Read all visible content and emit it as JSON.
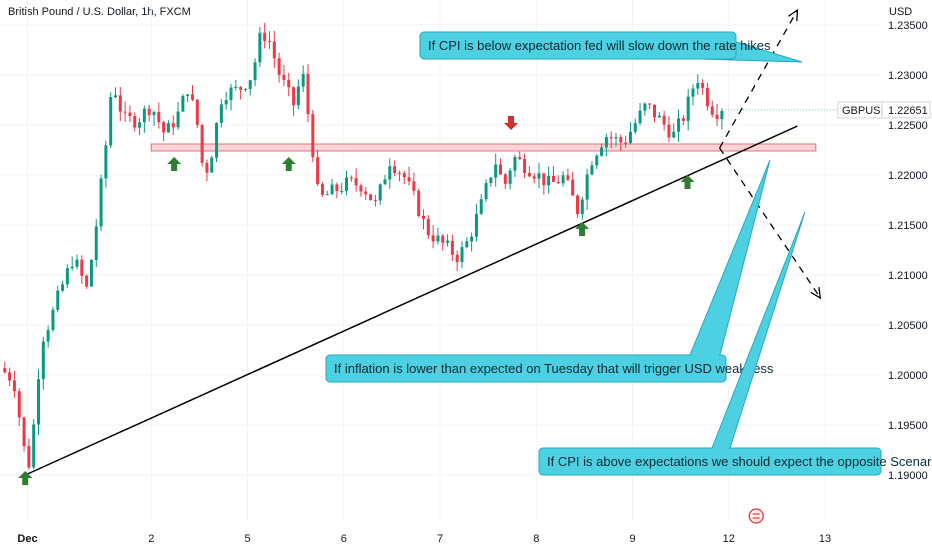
{
  "chart_data": {
    "type": "candlestick",
    "title": "British Pound / U.S. Dollar, 1h, FXCM",
    "symbol": "GBPUSD",
    "last_price": "1.22651",
    "currency_label": "USD",
    "y_ticks": [
      "1.23500",
      "1.23000",
      "1.22500",
      "1.22000",
      "1.21500",
      "1.21000",
      "1.20500",
      "1.20000",
      "1.19500",
      "1.19000"
    ],
    "y_tick_values": [
      1.235,
      1.23,
      1.225,
      1.22,
      1.215,
      1.21,
      1.205,
      1.2,
      1.195,
      1.19
    ],
    "ylim": [
      1.1855,
      1.2375
    ],
    "x_ticks": [
      "Dec",
      "2",
      "5",
      "6",
      "7",
      "8",
      "9",
      "12",
      "13"
    ],
    "x_tick_positions": [
      0.6,
      3.3,
      5.4,
      7.5,
      9.6,
      11.7,
      13.8,
      15.9,
      18.0
    ],
    "xlim": [
      0,
      19.2
    ],
    "event_icon_x": 16.5,
    "callouts": [
      {
        "text": "If CPI is below expectation fed will slow down the rate hikes"
      },
      {
        "text": "If inflation is lower than expected on Tuesday that will trigger USD weakness"
      },
      {
        "text": "If CPI is above expectations we should expect the opposite Scenario"
      }
    ],
    "support_zone": [
      1.2231,
      1.2224
    ],
    "trendline": [
      [
        0.6,
        1.1901
      ],
      [
        17.4,
        1.2249
      ]
    ],
    "scenario_up": [
      [
        15.7,
        1.2227
      ],
      [
        17.4,
        1.2365
      ]
    ],
    "scenario_down": [
      [
        15.7,
        1.2227
      ],
      [
        17.9,
        1.2077
      ]
    ],
    "markers": [
      {
        "type": "up",
        "x": 0.55,
        "y": 1.1897
      },
      {
        "type": "up",
        "x": 3.8,
        "y": 1.2211
      },
      {
        "type": "up",
        "x": 6.3,
        "y": 1.2211
      },
      {
        "type": "down",
        "x": 11.15,
        "y": 1.2252
      },
      {
        "type": "up",
        "x": 12.7,
        "y": 1.2146
      },
      {
        "type": "up",
        "x": 15.0,
        "y": 1.2193
      }
    ],
    "path_points": [
      [
        0.0,
        1.2007
      ],
      [
        0.3,
        1.1995
      ],
      [
        0.5,
        1.1935
      ],
      [
        0.6,
        1.1901
      ],
      [
        0.75,
        1.1955
      ],
      [
        0.9,
        1.2035
      ],
      [
        1.1,
        1.2055
      ],
      [
        1.3,
        1.2082
      ],
      [
        1.6,
        1.2118
      ],
      [
        1.9,
        1.2085
      ],
      [
        2.1,
        1.215
      ],
      [
        2.3,
        1.2225
      ],
      [
        2.45,
        1.2295
      ],
      [
        2.7,
        1.2255
      ],
      [
        3.0,
        1.2255
      ],
      [
        3.3,
        1.227
      ],
      [
        3.6,
        1.224
      ],
      [
        3.9,
        1.2262
      ],
      [
        4.1,
        1.2288
      ],
      [
        4.3,
        1.2252
      ],
      [
        4.45,
        1.2198
      ],
      [
        4.6,
        1.2218
      ],
      [
        4.85,
        1.2282
      ],
      [
        5.2,
        1.2285
      ],
      [
        5.5,
        1.23
      ],
      [
        5.7,
        1.2342
      ],
      [
        5.85,
        1.2338
      ],
      [
        6.1,
        1.23
      ],
      [
        6.4,
        1.227
      ],
      [
        6.6,
        1.2302
      ],
      [
        6.8,
        1.2235
      ],
      [
        6.95,
        1.2175
      ],
      [
        7.2,
        1.2182
      ],
      [
        7.6,
        1.2192
      ],
      [
        7.9,
        1.219
      ],
      [
        8.2,
        1.217
      ],
      [
        8.5,
        1.2215
      ],
      [
        8.8,
        1.22
      ],
      [
        9.1,
        1.217
      ],
      [
        9.3,
        1.2145
      ],
      [
        9.6,
        1.2133
      ],
      [
        10.0,
        1.2118
      ],
      [
        10.2,
        1.2133
      ],
      [
        10.5,
        1.217
      ],
      [
        10.8,
        1.2215
      ],
      [
        11.0,
        1.2188
      ],
      [
        11.2,
        1.2218
      ],
      [
        11.6,
        1.2205
      ],
      [
        12.0,
        1.219
      ],
      [
        12.3,
        1.2198
      ],
      [
        12.6,
        1.2165
      ],
      [
        12.9,
        1.2215
      ],
      [
        13.2,
        1.224
      ],
      [
        13.6,
        1.2232
      ],
      [
        13.9,
        1.2255
      ],
      [
        14.1,
        1.227
      ],
      [
        14.4,
        1.2255
      ],
      [
        14.7,
        1.224
      ],
      [
        14.95,
        1.2262
      ],
      [
        15.2,
        1.23
      ],
      [
        15.4,
        1.2278
      ],
      [
        15.6,
        1.2262
      ],
      [
        15.75,
        1.2268
      ]
    ],
    "colors": {
      "up": "#089981",
      "down": "#f23645",
      "callout_fill": "#4dd0e1",
      "callout_stroke": "#26a9bd",
      "marker_up": "#2e7d32",
      "marker_down": "#d32f2f",
      "zone_fill": "#f8c5cb",
      "zone_stroke": "#e57373",
      "grid": "#f0f3fa"
    }
  }
}
